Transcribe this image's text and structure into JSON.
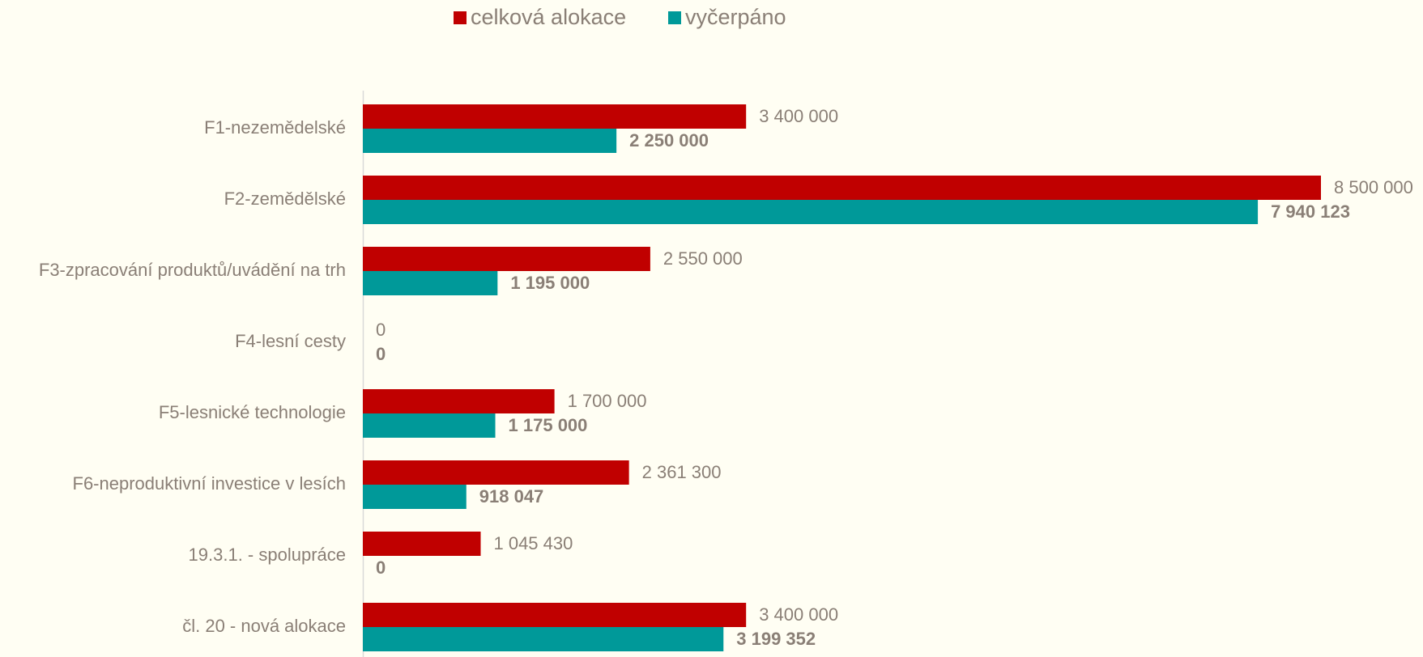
{
  "chart_data": {
    "type": "bar",
    "orientation": "horizontal",
    "categories": [
      "F1-nezemědelské",
      "F2-zemědělské",
      "F3-zpracování produktů/uvádění na trh",
      "F4-lesní cesty",
      "F5-lesnické technologie",
      "F6-neproduktivní investice v lesích",
      "19.3.1. - spolupráce",
      "čl. 20 - nová alokace"
    ],
    "series": [
      {
        "name": "celková alokace",
        "color": "#c00000",
        "values": [
          3400000,
          8500000,
          2550000,
          0,
          1700000,
          2361300,
          1045430,
          3400000
        ],
        "value_labels": [
          "3 400 000",
          "8 500 000",
          "2 550 000",
          "0",
          "1 700 000",
          "2 361 300",
          "1 045 430",
          "3 400 000"
        ]
      },
      {
        "name": "vyčerpáno",
        "color": "#009999",
        "values": [
          2250000,
          7940123,
          1195000,
          0,
          1175000,
          918047,
          0,
          3199352
        ],
        "value_labels": [
          "2 250 000",
          "7 940 123",
          "1 195 000",
          "0",
          "1 175 000",
          "918 047",
          "0",
          "3 199 352"
        ]
      }
    ],
    "xlim": [
      0,
      8500000
    ],
    "legend": "top"
  }
}
